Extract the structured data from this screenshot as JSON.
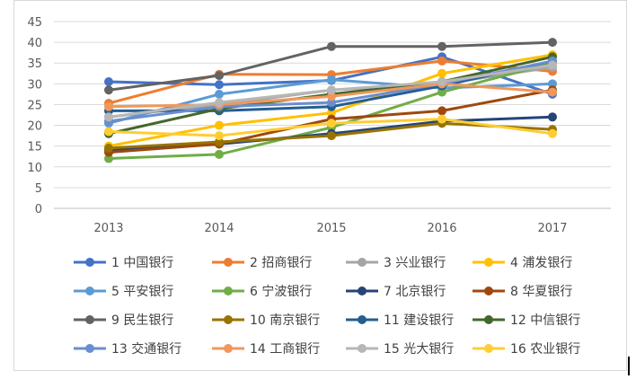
{
  "chart_data": {
    "type": "line",
    "x": [
      "2013",
      "2014",
      "2015",
      "2016",
      "2017"
    ],
    "ylim": [
      0,
      45
    ],
    "yticks": [
      0,
      5,
      10,
      15,
      20,
      25,
      30,
      35,
      40,
      45
    ],
    "grid": "horizontal",
    "legend_position": "bottom",
    "series": [
      {
        "name": "1 中国银行",
        "color": "#4472C4",
        "values": [
          30.5,
          29.8,
          30.8,
          36.5,
          27.5
        ]
      },
      {
        "name": "2 招商银行",
        "color": "#ED7D31",
        "values": [
          25.3,
          32.3,
          32.2,
          35.5,
          33.0
        ]
      },
      {
        "name": "3 兴业银行",
        "color": "#A5A5A5",
        "values": [
          22.0,
          25.0,
          28.5,
          30.0,
          34.0
        ]
      },
      {
        "name": "4 浦发银行",
        "color": "#FFC000",
        "values": [
          15.0,
          20.0,
          23.0,
          32.5,
          37.0
        ]
      },
      {
        "name": "5 平安银行",
        "color": "#5B9BD5",
        "values": [
          20.5,
          27.5,
          31.0,
          29.0,
          30.0
        ]
      },
      {
        "name": "6 宁波银行",
        "color": "#70AD47",
        "values": [
          12.0,
          13.0,
          19.5,
          28.0,
          35.0
        ]
      },
      {
        "name": "7 北京银行",
        "color": "#264478",
        "values": [
          14.0,
          15.5,
          18.0,
          21.0,
          22.0
        ]
      },
      {
        "name": "8 华夏银行",
        "color": "#9E480E",
        "values": [
          13.5,
          15.5,
          21.5,
          23.5,
          28.5
        ]
      },
      {
        "name": "9 民生银行",
        "color": "#636363",
        "values": [
          28.5,
          32.0,
          39.0,
          39.0,
          40.0
        ]
      },
      {
        "name": "10 南京银行",
        "color": "#997300",
        "values": [
          14.5,
          16.0,
          17.5,
          20.5,
          19.0
        ]
      },
      {
        "name": "11 建设银行",
        "color": "#255E91",
        "values": [
          23.5,
          23.5,
          24.5,
          29.5,
          35.5
        ]
      },
      {
        "name": "12 中信银行",
        "color": "#43682B",
        "values": [
          18.0,
          24.0,
          27.5,
          30.5,
          36.5
        ]
      },
      {
        "name": "13 交通银行",
        "color": "#698ED0",
        "values": [
          21.0,
          24.5,
          25.5,
          30.0,
          35.5
        ]
      },
      {
        "name": "14 工商银行",
        "color": "#F1975A",
        "values": [
          24.5,
          25.0,
          27.0,
          30.0,
          28.0
        ]
      },
      {
        "name": "15 光大银行",
        "color": "#B7B7B7",
        "values": [
          22.0,
          25.5,
          28.5,
          30.5,
          34.5
        ]
      },
      {
        "name": "16 农业银行",
        "color": "#FFCD33",
        "values": [
          18.5,
          17.5,
          20.5,
          21.5,
          18.0
        ]
      }
    ]
  }
}
